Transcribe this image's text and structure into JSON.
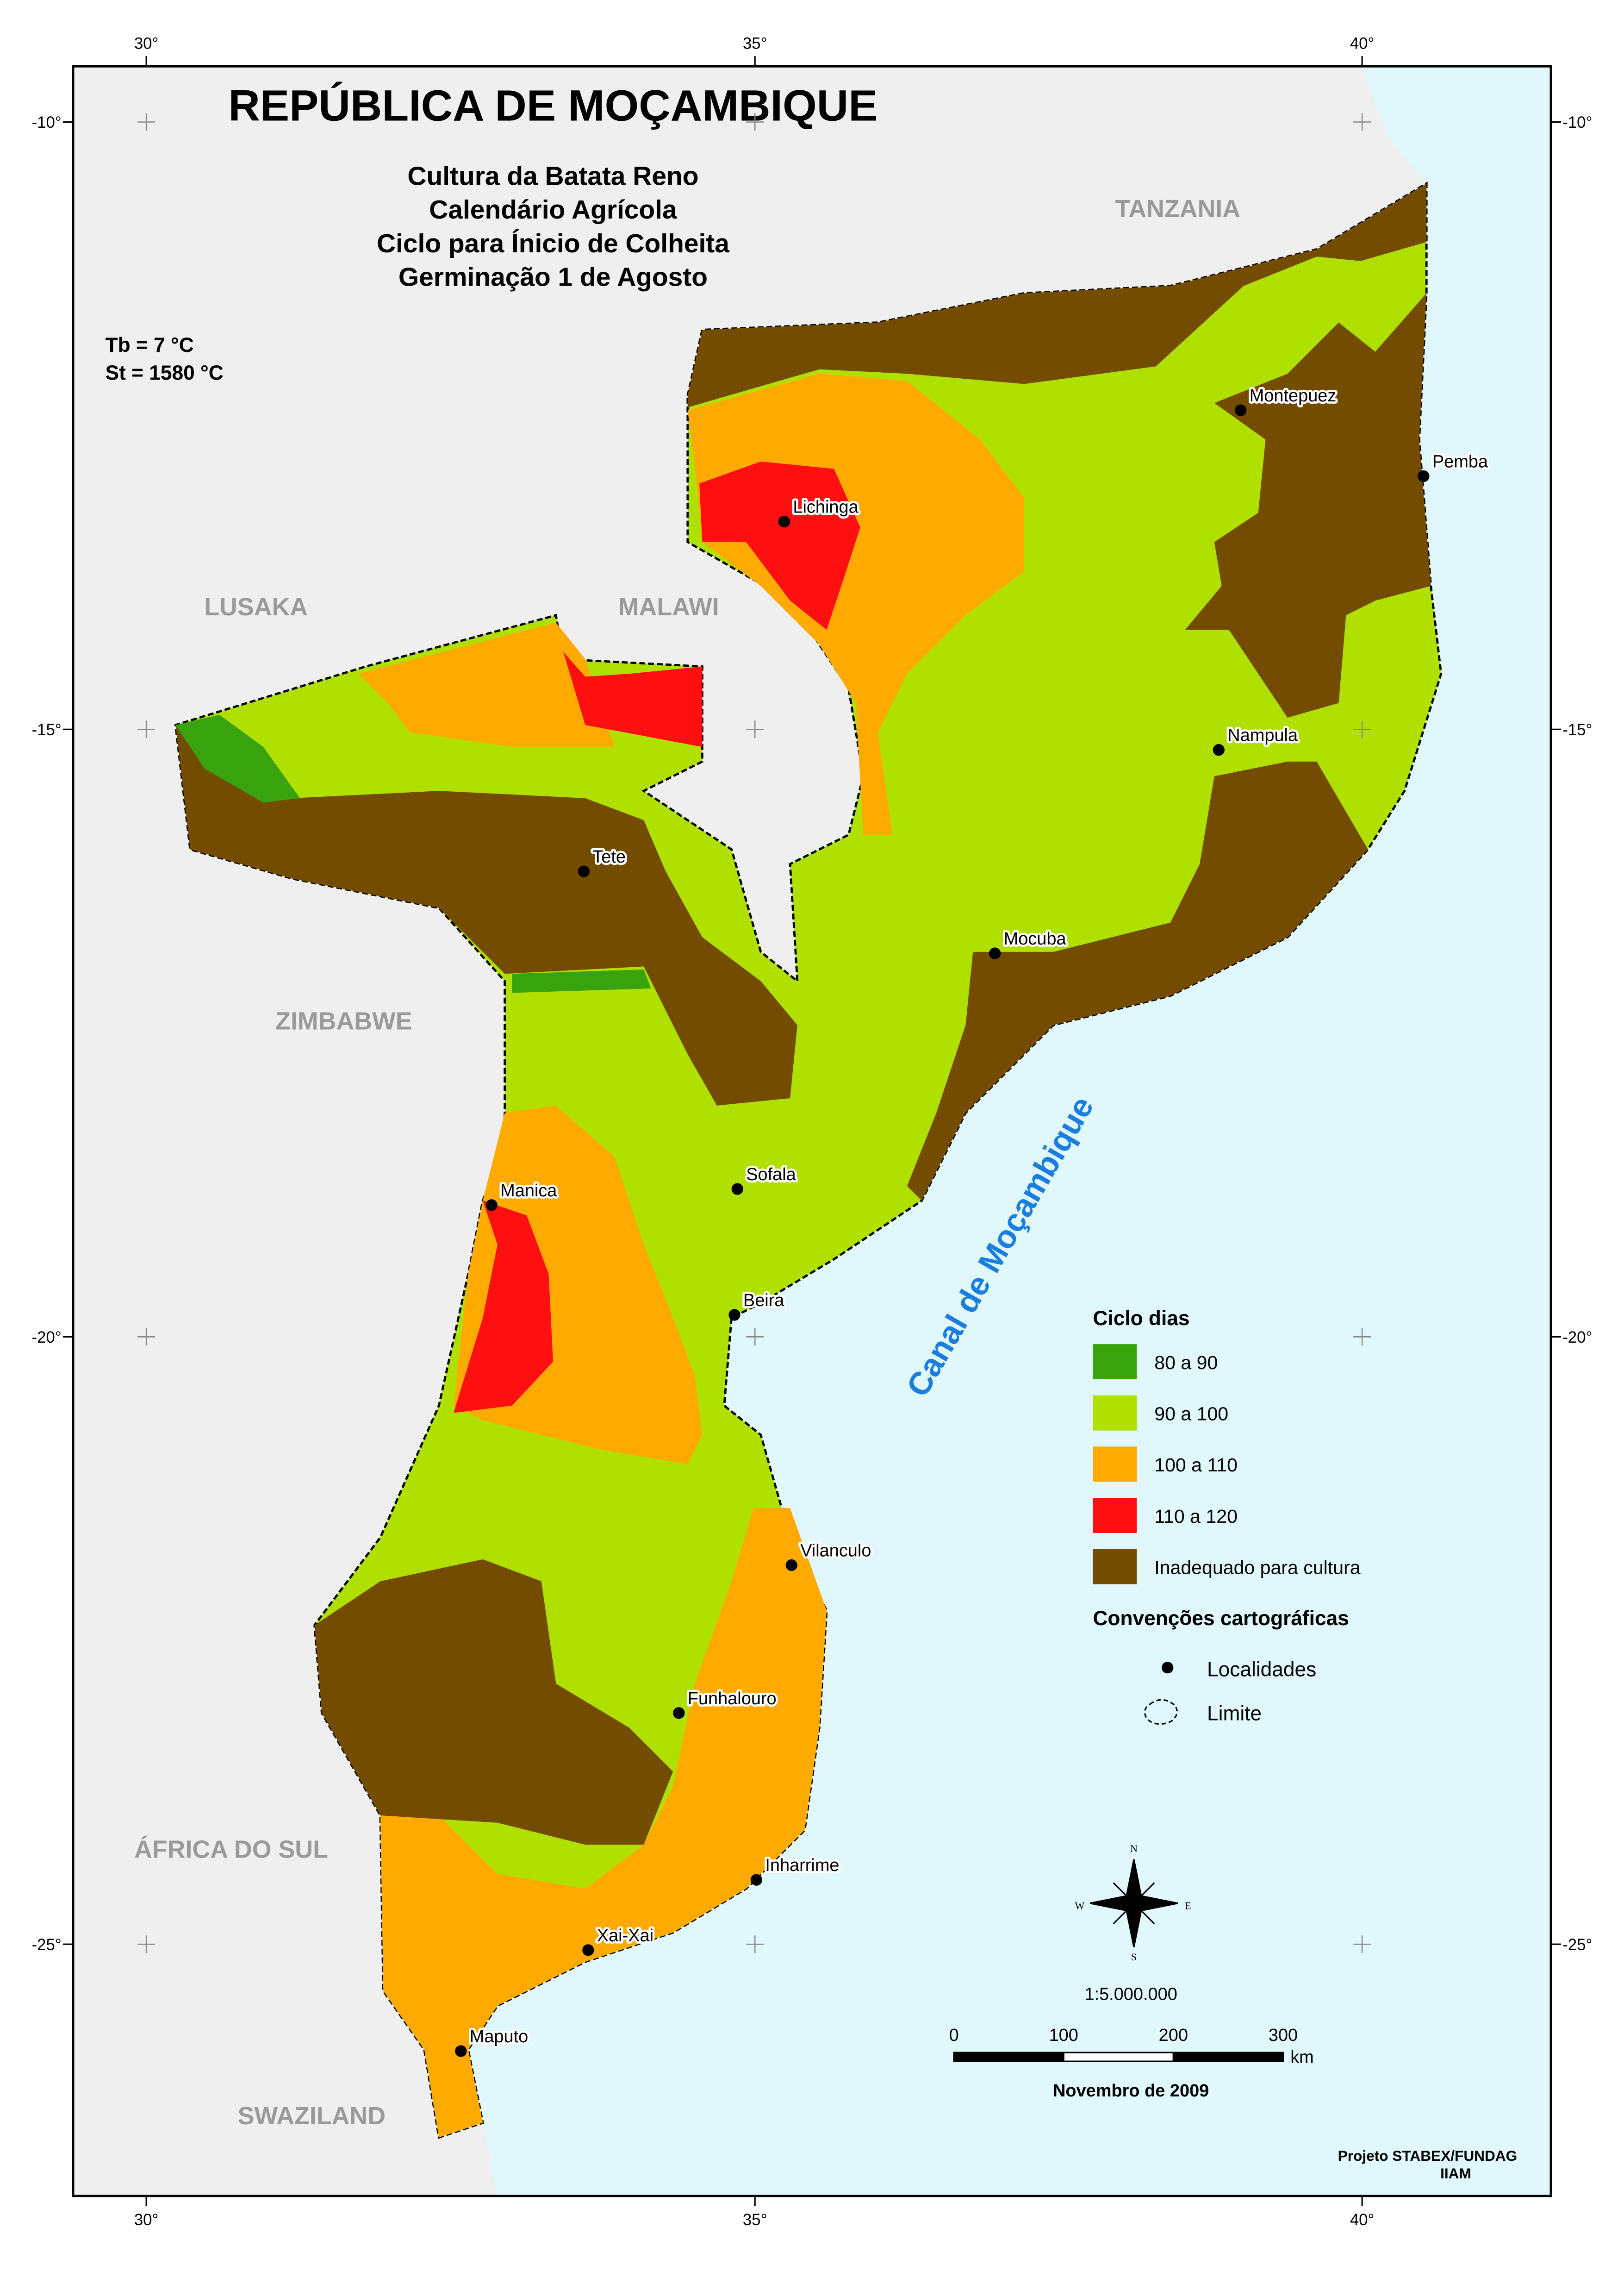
{
  "title": "REPÚBLICA DE MOÇAMBIQUE",
  "subtitle": [
    "Cultura da Batata Reno",
    "Calendário Agrícola",
    "Ciclo para Ínicio de Colheita",
    "Germinação 1 de Agosto"
  ],
  "parameters": [
    "Tb = 7 °C",
    "St =  1580 °C"
  ],
  "countries": [
    "TANZANIA",
    "LUSAKA",
    "MALAWI",
    "ZIMBABWE",
    "ÁFRICA DO SUL",
    "SWAZILAND"
  ],
  "sea": "Canal de Moçambique",
  "localities": [
    "Montepuez",
    "Pemba",
    "Lichinga",
    "Nampula",
    "Tete",
    "Mocuba",
    "Sofala",
    "Manica",
    "Beira",
    "Vilanculo",
    "Funhalouro",
    "Inharrime",
    "Xai-Xai",
    "Maputo"
  ],
  "longitude_labels": [
    "30°",
    "35°",
    "40°"
  ],
  "latitude_labels": [
    "-10°",
    "-15°",
    "-20°",
    "-25°"
  ],
  "legend": {
    "title": "Ciclo dias",
    "items": [
      {
        "label": "80 a 90",
        "color": "#38a30c"
      },
      {
        "label": "90 a 100",
        "color": "#b0e000"
      },
      {
        "label": "100 a 110",
        "color": "#ffaa00"
      },
      {
        "label": "110 a 120",
        "color": "#ff1010"
      },
      {
        "label": "Inadequado para cultura",
        "color": "#734c00"
      }
    ],
    "conventions_title": "Convenções cartográficas",
    "conventions": [
      "Localidades",
      "Limite"
    ]
  },
  "scale": {
    "ratio": "1:5.000.000",
    "ticks": [
      0,
      100,
      200,
      300
    ],
    "unit": "km"
  },
  "date": "Novembro de 2009",
  "credit": [
    "Projeto STABEX/FUNDAG",
    "IIAM"
  ],
  "compass": [
    "N",
    "S",
    "W",
    "E"
  ]
}
